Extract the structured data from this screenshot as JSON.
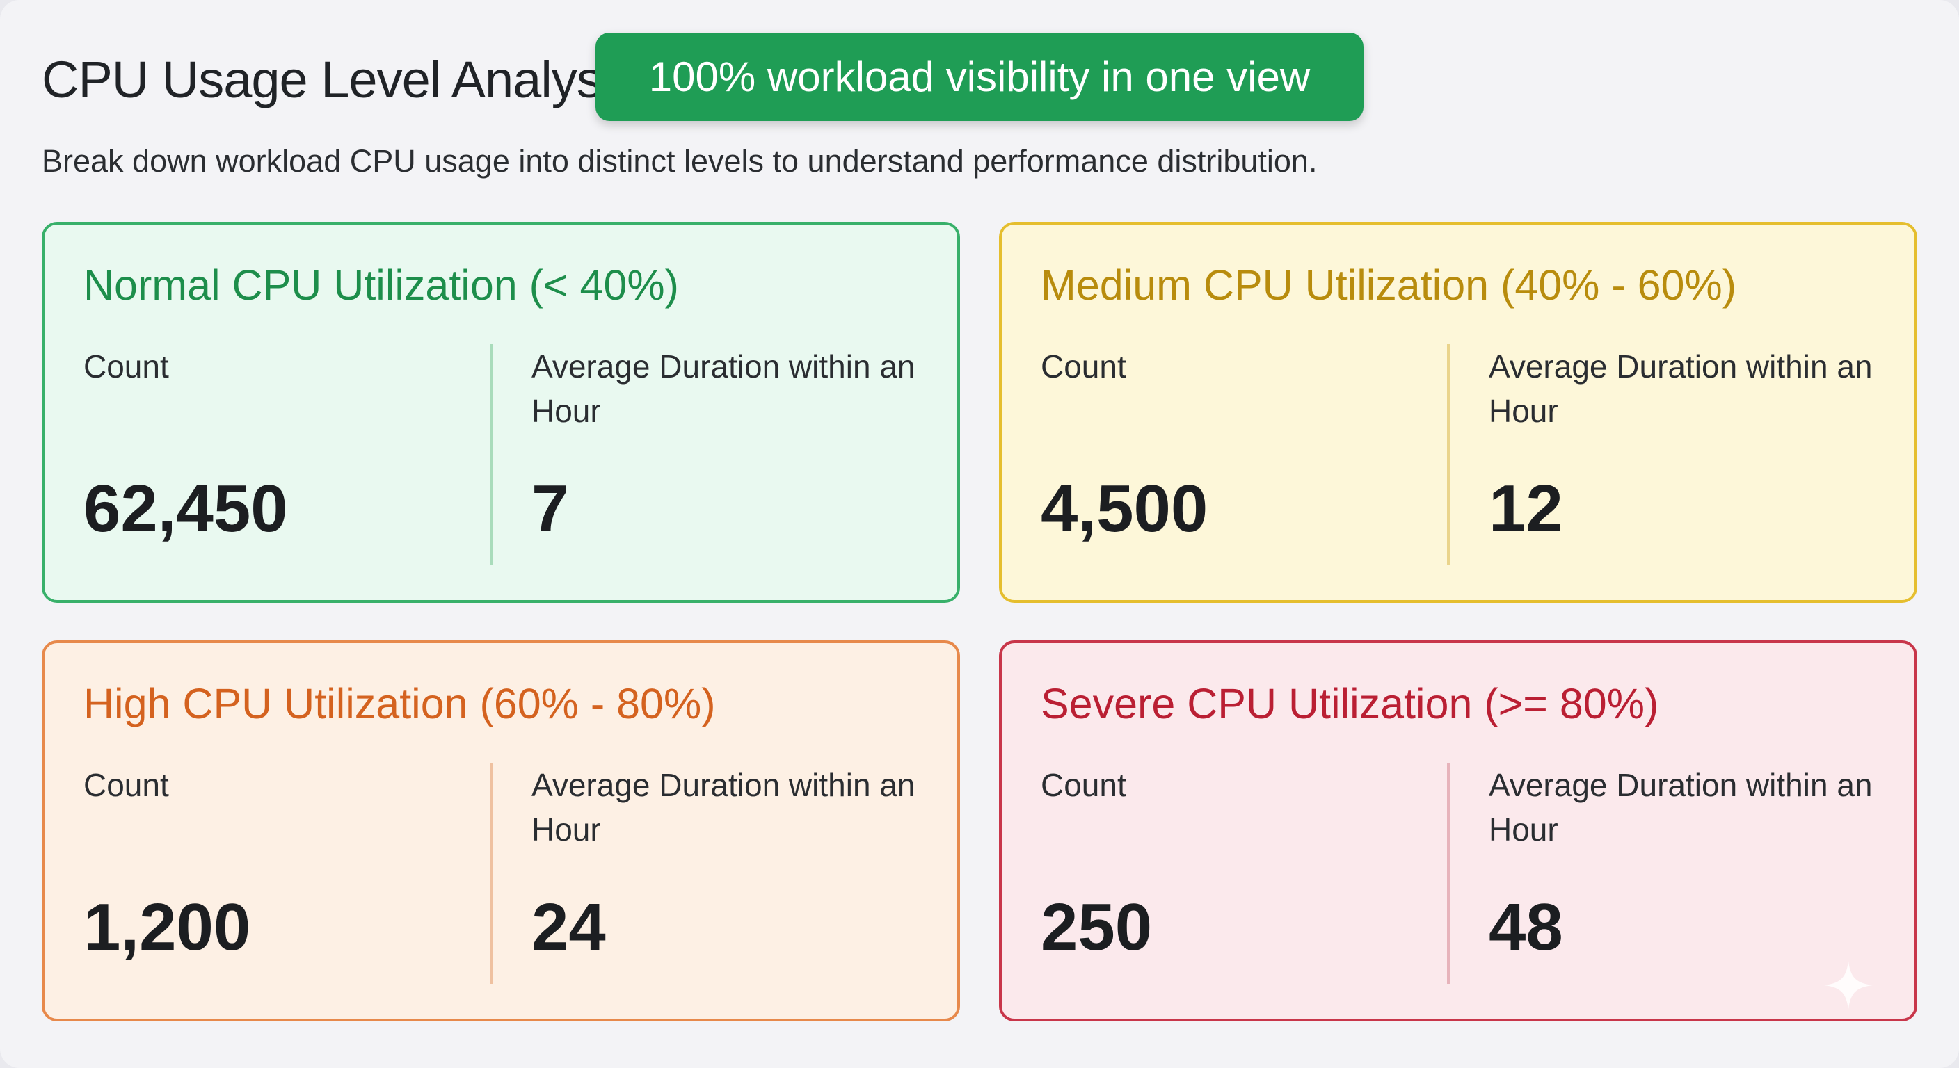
{
  "header": {
    "title": "CPU Usage Level Analysis",
    "subtitle": "Break down workload CPU usage into distinct levels to understand performance distribution."
  },
  "banner": {
    "text": "100% workload visibility in one view",
    "color": "#1f9d55"
  },
  "cards": [
    {
      "title": "Normal CPU Utilization (< 40%)",
      "count_label": "Count",
      "count": "62,450",
      "duration_label": "Average Duration within an Hour",
      "duration": "7",
      "accent_color": "#1d8e4b"
    },
    {
      "title": "Medium CPU Utilization (40% - 60%)",
      "count_label": "Count",
      "count": "4,500",
      "duration_label": "Average Duration within an Hour",
      "duration": "12",
      "accent_color": "#b88c0d"
    },
    {
      "title": "High CPU Utilization (60% - 80%)",
      "count_label": "Count",
      "count": "1,200",
      "duration_label": "Average Duration within an Hour",
      "duration": "24",
      "accent_color": "#d4621f"
    },
    {
      "title": "Severe CPU Utilization (>= 80%)",
      "count_label": "Count",
      "count": "250",
      "duration_label": "Average Duration within an Hour",
      "duration": "48",
      "accent_color": "#ba1f33"
    }
  ],
  "icons": {
    "corner": "sparkle-icon"
  }
}
